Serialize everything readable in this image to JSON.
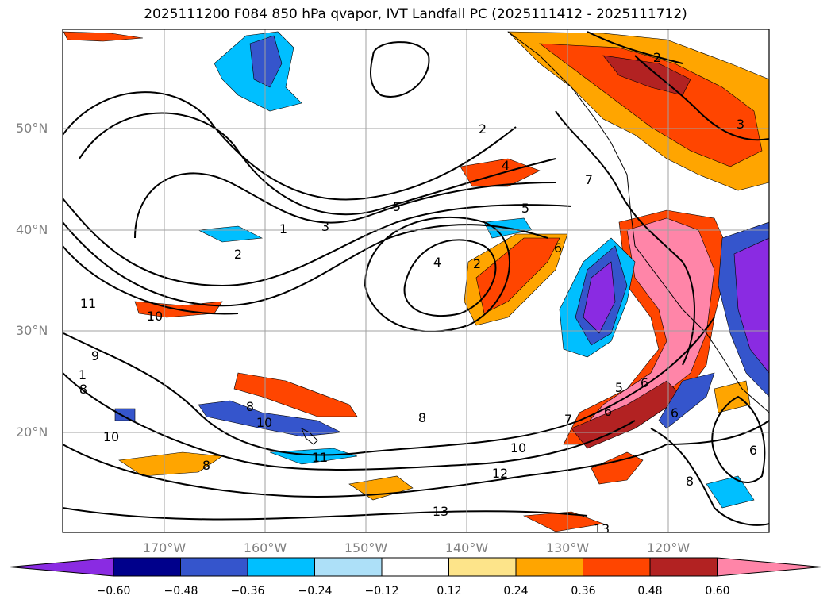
{
  "title": "2025111200 F084 850 hPa qvapor, IVT Landfall PC (2025111412 - 2025111712)",
  "lat_labels": [
    "50°N",
    "40°N",
    "30°N",
    "20°N"
  ],
  "lon_labels": [
    "170°W",
    "160°W",
    "150°W",
    "140°W",
    "130°W",
    "120°W"
  ],
  "colorbar": {
    "colors": [
      "#8a2be2",
      "#00008b",
      "#3555cc",
      "#00bfff",
      "#ade0f8",
      "#ffffff",
      "#fde48a",
      "#ffa500",
      "#ff4500",
      "#b22222",
      "#ff85a8"
    ],
    "tick_labels": [
      "−0.60",
      "−0.48",
      "−0.36",
      "−0.24",
      "−0.12",
      "0.12",
      "0.24",
      "0.36",
      "0.48",
      "0.60"
    ]
  },
  "contour_labels": [
    "2",
    "3",
    "2",
    "2",
    "4",
    "5",
    "5",
    "7",
    "6",
    "6",
    "4",
    "2",
    "1",
    "3",
    "10",
    "11",
    "10",
    "8",
    "10",
    "11",
    "12",
    "10",
    "13",
    "13",
    "6",
    "8",
    "7",
    "5",
    "6",
    "6",
    "1",
    "8",
    "8",
    "9",
    "8"
  ]
}
